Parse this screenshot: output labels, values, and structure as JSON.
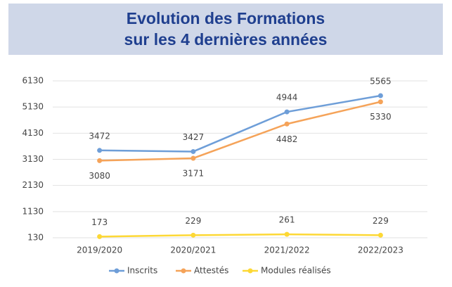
{
  "chart_data": {
    "type": "line",
    "title": [
      "Evolution des Formations",
      "sur les 4 dernières années"
    ],
    "categories": [
      "2019/2020",
      "2020/2021",
      "2021/2022",
      "2022/2023"
    ],
    "series": [
      {
        "name": "Inscrits",
        "color": "#6e9ed8",
        "values": [
          3472,
          3427,
          4944,
          5565
        ]
      },
      {
        "name": "Attestés",
        "color": "#f5a359",
        "values": [
          3080,
          3171,
          4482,
          5330
        ]
      },
      {
        "name": "Modules réalisés",
        "color": "#fdd835",
        "values": [
          173,
          229,
          261,
          229
        ]
      }
    ],
    "ylim": [
      130,
      6130
    ],
    "yticks": [
      130,
      1130,
      2130,
      3130,
      4130,
      5130,
      6130
    ],
    "grid": true,
    "legend": "bottom"
  }
}
